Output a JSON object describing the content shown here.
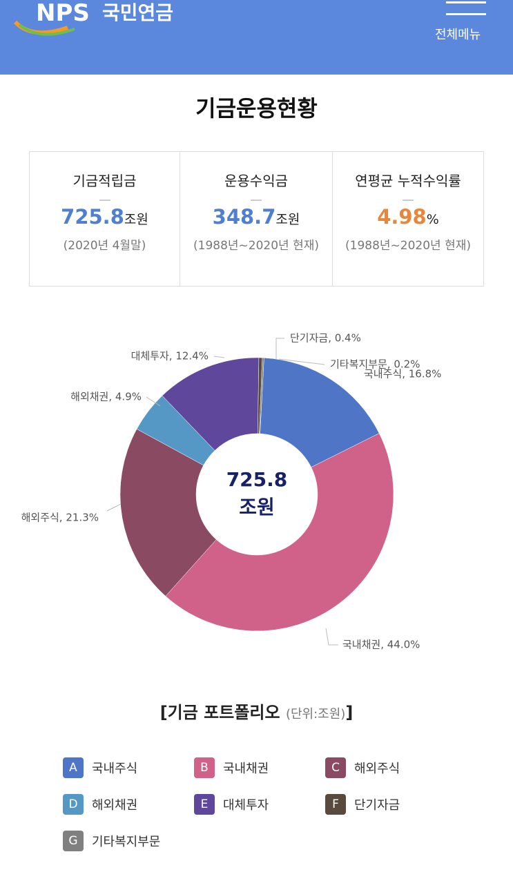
{
  "header": {
    "logo": "NPS",
    "logo_name": "국민연금",
    "menu": "전체메뉴"
  },
  "title": "기금운용현황",
  "summary": [
    {
      "label": "기금적립금",
      "value": "725.8",
      "unit": "조원",
      "period": "(2020년 4월말)"
    },
    {
      "label": "운용수익금",
      "value": "348.7",
      "unit": "조원",
      "period": "(1988년~2020년 현재)"
    },
    {
      "label": "연평균 누적수익률",
      "value": "4.98",
      "unit": "%",
      "period": "(1988년~2020년 현재)"
    }
  ],
  "chart_data": {
    "type": "pie",
    "donut": true,
    "categories": [
      "국내주식",
      "국내채권",
      "해외주식",
      "해외채권",
      "대체투자",
      "단기자금",
      "기타복지부문"
    ],
    "values": [
      16.8,
      44.0,
      21.3,
      4.9,
      12.4,
      0.4,
      0.2
    ],
    "value_labels": [
      "국내주식, 16.8%",
      "국내채권, 44.0%",
      "해외주식, 21.3%",
      "해외채권, 4.9%",
      "대체투자, 12.4%",
      "단기자금, 0.4%",
      "기타복지부문, 0.2%"
    ],
    "colors": [
      "#4f76c6",
      "#d0628a",
      "#8a4a62",
      "#5598c5",
      "#5f479b",
      "#5a4a3e",
      "#808080"
    ],
    "center_value": "725.8",
    "center_unit": "조원"
  },
  "caption": "[기금 포트폴리오",
  "caption_unit": "(단위:조원)",
  "caption_end": "]",
  "legend_letters": [
    "A",
    "B",
    "C",
    "D",
    "E",
    "F",
    "G"
  ]
}
